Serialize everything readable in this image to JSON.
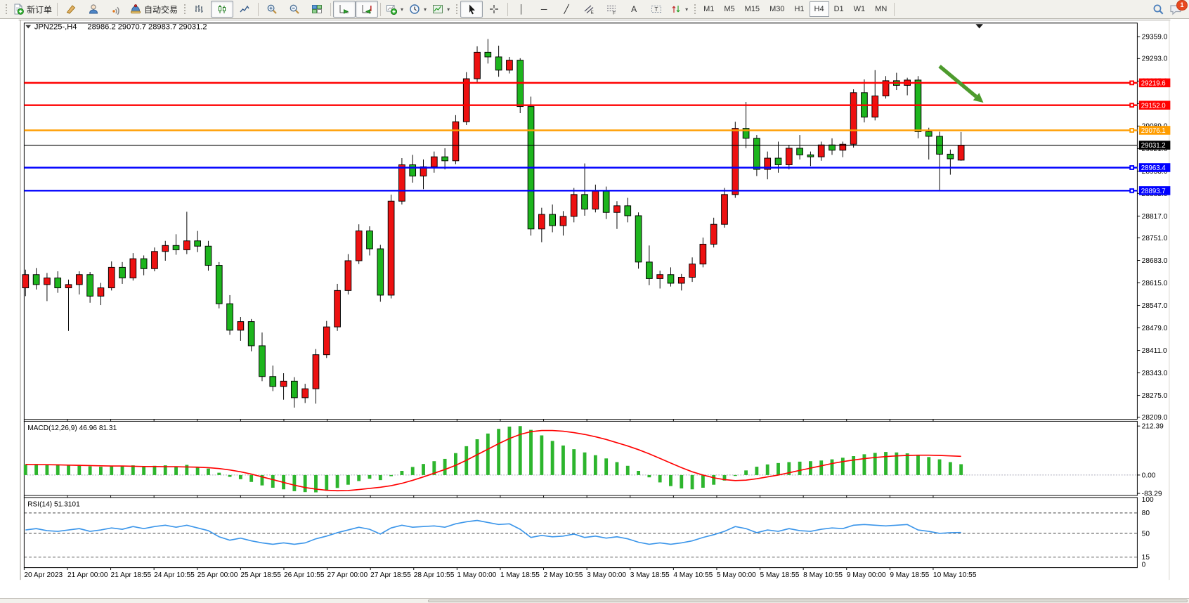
{
  "toolbar": {
    "new_order": "新订单",
    "autotrading": "自动交易",
    "timeframes": [
      "M1",
      "M5",
      "M15",
      "M30",
      "H1",
      "H4",
      "D1",
      "W1",
      "MN"
    ],
    "active_timeframe": "H4",
    "chat_badge": "1",
    "glyphs": {
      "vertical_line": "│",
      "horizontal_line": "─",
      "trendline": "╱",
      "text_tool": "A",
      "label_tool": "T"
    }
  },
  "chart": {
    "symbol_period": "JPN225-,H4",
    "ohlc_text": "28986.2 29070.7 28983.7 29031.2"
  },
  "indicators": {
    "macd_label": "MACD(12,26,9) 46.96 81.31",
    "rsi_label": "RSI(14) 51.3101"
  },
  "colors": {
    "bull": "#ed1111",
    "bear": "#1db51d",
    "wick": "#000000",
    "macd_hist": "#2db52d",
    "macd_signal": "#ff0000",
    "rsi_line": "#3c96ea",
    "hline_red": "#ff0000",
    "hline_orange": "#ff9d00",
    "hline_blue": "#0000ff",
    "current_line": "#000000",
    "arrow": "#4d9b2d"
  },
  "date_axis": [
    "20 Apr 2023",
    "21 Apr 00:00",
    "21 Apr 18:55",
    "24 Apr 10:55",
    "25 Apr 00:00",
    "25 Apr 18:55",
    "26 Apr 10:55",
    "27 Apr 00:00",
    "27 Apr 18:55",
    "28 Apr 10:55",
    "1 May 00:00",
    "1 May 18:55",
    "2 May 10:55",
    "3 May 00:00",
    "3 May 18:55",
    "4 May 10:55",
    "5 May 00:00",
    "5 May 18:55",
    "8 May 10:55",
    "9 May 00:00",
    "9 May 18:55",
    "10 May 10:55"
  ],
  "chart_data": [
    {
      "type": "candlestick",
      "title": "JPN225-,H4",
      "ylim": [
        28200,
        29400
      ],
      "price_ticks": [
        "29359.0",
        "29293.0",
        "29225.0",
        "29157.0",
        "29089.0",
        "29021.0",
        "28953.0",
        "28885.0",
        "28817.0",
        "28751.0",
        "28683.0",
        "28615.0",
        "28547.0",
        "28479.0",
        "28411.0",
        "28343.0",
        "28275.0",
        "28209.0"
      ],
      "hlines": [
        {
          "price": 29219.6,
          "color": "#ff0000"
        },
        {
          "price": 29152.0,
          "color": "#ff0000"
        },
        {
          "price": 29076.1,
          "color": "#ff9d00"
        },
        {
          "price": 28963.4,
          "color": "#0000ff"
        },
        {
          "price": 28893.7,
          "color": "#0000ff"
        }
      ],
      "current_price": 29031.2,
      "arrow": {
        "from_bar": 85.0,
        "from_price": 29270,
        "to_bar": 88.4,
        "to_price": 29178
      },
      "shift_marker_bar": 88.7,
      "candles": [
        [
          28600,
          28655,
          28575,
          28640
        ],
        [
          28640,
          28660,
          28595,
          28610
        ],
        [
          28610,
          28645,
          28560,
          28630
        ],
        [
          28630,
          28650,
          28585,
          28600
        ],
        [
          28600,
          28625,
          28470,
          28610
        ],
        [
          28610,
          28650,
          28580,
          28640
        ],
        [
          28640,
          28648,
          28555,
          28575
        ],
        [
          28575,
          28615,
          28548,
          28600
        ],
        [
          28600,
          28680,
          28592,
          28662
        ],
        [
          28662,
          28678,
          28612,
          28630
        ],
        [
          28630,
          28705,
          28622,
          28688
        ],
        [
          28688,
          28698,
          28638,
          28658
        ],
        [
          28658,
          28722,
          28650,
          28710
        ],
        [
          28710,
          28742,
          28682,
          28728
        ],
        [
          28728,
          28762,
          28700,
          28715
        ],
        [
          28715,
          28830,
          28702,
          28742
        ],
        [
          28742,
          28772,
          28708,
          28726
        ],
        [
          28726,
          28742,
          28652,
          28668
        ],
        [
          28668,
          28678,
          28538,
          28552
        ],
        [
          28552,
          28578,
          28458,
          28472
        ],
        [
          28472,
          28512,
          28440,
          28498
        ],
        [
          28498,
          28506,
          28408,
          28425
        ],
        [
          28425,
          28465,
          28318,
          28332
        ],
        [
          28332,
          28365,
          28288,
          28302
        ],
        [
          28302,
          28342,
          28262,
          28318
        ],
        [
          28318,
          28330,
          28238,
          28268
        ],
        [
          28268,
          28310,
          28252,
          28295
        ],
        [
          28295,
          28415,
          28250,
          28398
        ],
        [
          28398,
          28500,
          28388,
          28482
        ],
        [
          28482,
          28612,
          28470,
          28592
        ],
        [
          28592,
          28702,
          28580,
          28682
        ],
        [
          28682,
          28792,
          28672,
          28772
        ],
        [
          28772,
          28786,
          28698,
          28718
        ],
        [
          28718,
          28730,
          28558,
          28578
        ],
        [
          28578,
          28882,
          28568,
          28862
        ],
        [
          28862,
          28992,
          28852,
          28972
        ],
        [
          28972,
          29002,
          28918,
          28938
        ],
        [
          28938,
          28988,
          28898,
          28966
        ],
        [
          28966,
          29012,
          28948,
          28996
        ],
        [
          28996,
          29022,
          28958,
          28984
        ],
        [
          28984,
          29122,
          28974,
          29102
        ],
        [
          29102,
          29252,
          29092,
          29232
        ],
        [
          29232,
          29330,
          29222,
          29312
        ],
        [
          29312,
          29352,
          29278,
          29298
        ],
        [
          29298,
          29332,
          29238,
          29258
        ],
        [
          29258,
          29298,
          29248,
          29288
        ],
        [
          29288,
          29294,
          29128,
          29148
        ],
        [
          29148,
          29178,
          28758,
          28778
        ],
        [
          28778,
          28842,
          28738,
          28822
        ],
        [
          28822,
          28852,
          28768,
          28788
        ],
        [
          28788,
          28832,
          28758,
          28816
        ],
        [
          28816,
          28902,
          28798,
          28882
        ],
        [
          28882,
          28976,
          28818,
          28838
        ],
        [
          28838,
          28912,
          28828,
          28892
        ],
        [
          28892,
          28906,
          28808,
          28828
        ],
        [
          28828,
          28862,
          28778,
          28848
        ],
        [
          28848,
          28872,
          28798,
          28818
        ],
        [
          28818,
          28828,
          28658,
          28678
        ],
        [
          28678,
          28728,
          28608,
          28628
        ],
        [
          28628,
          28652,
          28598,
          28640
        ],
        [
          28640,
          28662,
          28604,
          28614
        ],
        [
          28614,
          28642,
          28592,
          28632
        ],
        [
          28632,
          28692,
          28618,
          28672
        ],
        [
          28672,
          28752,
          28662,
          28732
        ],
        [
          28732,
          28812,
          28722,
          28792
        ],
        [
          28792,
          28902,
          28782,
          28882
        ],
        [
          28882,
          29102,
          28872,
          29082
        ],
        [
          29082,
          29162,
          29022,
          29052
        ],
        [
          29052,
          29062,
          28938,
          28958
        ],
        [
          28958,
          29012,
          28928,
          28992
        ],
        [
          28992,
          29042,
          28948,
          28972
        ],
        [
          28972,
          29032,
          28958,
          29022
        ],
        [
          29022,
          29062,
          28988,
          29002
        ],
        [
          29002,
          29012,
          28968,
          28996
        ],
        [
          28996,
          29042,
          28984,
          29032
        ],
        [
          29032,
          29052,
          29002,
          29016
        ],
        [
          29016,
          29042,
          28995,
          29034
        ],
        [
          29034,
          29200,
          29024,
          29190
        ],
        [
          29190,
          29230,
          29100,
          29116
        ],
        [
          29116,
          29258,
          29106,
          29180
        ],
        [
          29180,
          29240,
          29172,
          29226
        ],
        [
          29226,
          29250,
          29198,
          29212
        ],
        [
          29212,
          29235,
          29182,
          29228
        ],
        [
          29228,
          29240,
          29052,
          29072
        ],
        [
          29072,
          29084,
          28988,
          29058
        ],
        [
          29058,
          29072,
          28895,
          29004
        ],
        [
          29004,
          29018,
          28942,
          28990
        ],
        [
          28986,
          29071,
          28984,
          29031
        ]
      ]
    },
    {
      "type": "macd",
      "ticks": [
        "212.39",
        "0.00",
        "-83.29"
      ],
      "ylim": [
        -88,
        233
      ],
      "histogram": [
        45,
        48,
        44,
        46,
        42,
        40,
        38,
        36,
        40,
        38,
        42,
        38,
        40,
        42,
        38,
        44,
        36,
        28,
        10,
        -8,
        -18,
        -30,
        -45,
        -55,
        -62,
        -70,
        -74,
        -75,
        -68,
        -56,
        -42,
        -26,
        -16,
        -22,
        -5,
        18,
        35,
        48,
        60,
        70,
        95,
        125,
        155,
        180,
        200,
        210,
        212,
        196,
        172,
        148,
        128,
        112,
        98,
        86,
        72,
        56,
        40,
        18,
        -10,
        -32,
        -48,
        -58,
        -62,
        -55,
        -42,
        -24,
        -4,
        20,
        36,
        46,
        52,
        56,
        58,
        60,
        63,
        68,
        75,
        82,
        90,
        96,
        100,
        98,
        94,
        86,
        78,
        68,
        56,
        47
      ],
      "signal": [
        46,
        45,
        45,
        44,
        43,
        42,
        41,
        40,
        39,
        39,
        38,
        37,
        37,
        36,
        36,
        35,
        34,
        32,
        28,
        22,
        14,
        4,
        -8,
        -20,
        -32,
        -44,
        -54,
        -61,
        -66,
        -68,
        -67,
        -63,
        -58,
        -53,
        -46,
        -36,
        -23,
        -8,
        8,
        24,
        42,
        64,
        88,
        112,
        136,
        158,
        176,
        188,
        193,
        193,
        190,
        184,
        176,
        166,
        154,
        140,
        126,
        110,
        92,
        72,
        52,
        32,
        14,
        0,
        -12,
        -20,
        -24,
        -22,
        -16,
        -8,
        0,
        10,
        20,
        30,
        40,
        50,
        58,
        65,
        71,
        76,
        80,
        83,
        85,
        86,
        86,
        85,
        83,
        81
      ]
    },
    {
      "type": "rsi",
      "ticks": [
        "100",
        "80",
        "50",
        "15",
        "0"
      ],
      "levels": [
        80,
        50,
        15
      ],
      "ylim": [
        0,
        100
      ],
      "values": [
        55,
        57,
        54,
        53,
        55,
        57,
        53,
        55,
        58,
        56,
        60,
        57,
        60,
        62,
        59,
        62,
        58,
        54,
        45,
        40,
        43,
        39,
        36,
        34,
        36,
        34,
        36,
        42,
        46,
        51,
        55,
        59,
        56,
        49,
        58,
        62,
        59,
        60,
        61,
        59,
        64,
        67,
        69,
        66,
        63,
        64,
        56,
        44,
        47,
        45,
        46,
        49,
        44,
        46,
        43,
        45,
        42,
        37,
        34,
        36,
        34,
        36,
        39,
        44,
        48,
        53,
        60,
        57,
        51,
        55,
        53,
        57,
        54,
        53,
        56,
        58,
        57,
        62,
        63,
        62,
        61,
        62,
        63,
        55,
        53,
        50,
        51,
        51.3
      ]
    }
  ]
}
